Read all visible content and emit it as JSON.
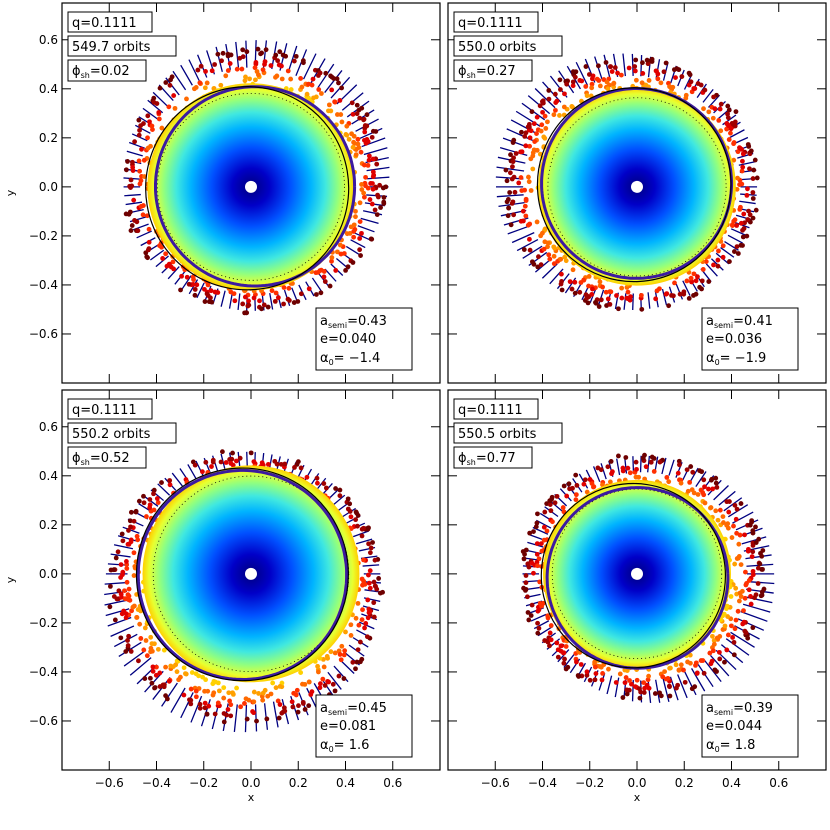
{
  "chart_data": {
    "type": "scatter",
    "title": "",
    "xlabel": "x",
    "ylabel": "y",
    "xlim": [
      -0.8,
      0.8
    ],
    "ylim": [
      -0.8,
      0.75
    ],
    "xticks": [
      -0.6,
      -0.4,
      -0.2,
      0.0,
      0.2,
      0.4,
      0.6
    ],
    "xtick_labels": [
      "−0.6",
      "−0.4",
      "−0.2",
      "0.0",
      "0.2",
      "0.4",
      "0.6"
    ],
    "yticks": [
      -0.6,
      -0.4,
      -0.2,
      0.0,
      0.2,
      0.4,
      0.6
    ],
    "ytick_labels": [
      "−0.6",
      "−0.4",
      "−0.2",
      "0.0",
      "0.2",
      "0.4",
      "0.6"
    ],
    "color_scale": [
      "#00007f",
      "#0000ff",
      "#00bfff",
      "#7fffb0",
      "#ffff00",
      "#ff7f00",
      "#ff0000",
      "#7f0000"
    ],
    "panels": [
      {
        "q_label": "q=0.1111",
        "orbits_label": "549.7 orbits",
        "phase_symbol": "ϕ",
        "phase_sub": "sh",
        "phase_value": "=0.02",
        "phase": 0.02,
        "a_symbol": "a",
        "a_sub": "semi",
        "a_value": "=0.43",
        "e_label": "e=0.040",
        "alpha_symbol": "α",
        "alpha_sub": "0",
        "alpha_value": "= −1.4",
        "a_semi": 0.43,
        "e": 0.04,
        "alpha0": -1.4
      },
      {
        "q_label": "q=0.1111",
        "orbits_label": "550.0 orbits",
        "phase_symbol": "ϕ",
        "phase_sub": "sh",
        "phase_value": "=0.27",
        "phase": 0.27,
        "a_symbol": "a",
        "a_sub": "semi",
        "a_value": "=0.41",
        "e_label": "e=0.036",
        "alpha_symbol": "α",
        "alpha_sub": "0",
        "alpha_value": "= −1.9",
        "a_semi": 0.41,
        "e": 0.036,
        "alpha0": -1.9
      },
      {
        "q_label": "q=0.1111",
        "orbits_label": "550.2 orbits",
        "phase_symbol": "ϕ",
        "phase_sub": "sh",
        "phase_value": "=0.52",
        "phase": 0.52,
        "a_symbol": "a",
        "a_sub": "semi",
        "a_value": "=0.45",
        "e_label": "e=0.081",
        "alpha_symbol": "α",
        "alpha_sub": "0",
        "alpha_value": "=  1.6",
        "a_semi": 0.45,
        "e": 0.081,
        "alpha0": 1.6
      },
      {
        "q_label": "q=0.1111",
        "orbits_label": "550.5 orbits",
        "phase_symbol": "ϕ",
        "phase_sub": "sh",
        "phase_value": "=0.77",
        "phase": 0.77,
        "a_symbol": "a",
        "a_sub": "semi",
        "a_value": "=0.39",
        "e_label": "e=0.044",
        "alpha_symbol": "α",
        "alpha_sub": "0",
        "alpha_value": "=  1.8",
        "a_semi": 0.39,
        "e": 0.044,
        "alpha0": 1.8
      }
    ]
  }
}
